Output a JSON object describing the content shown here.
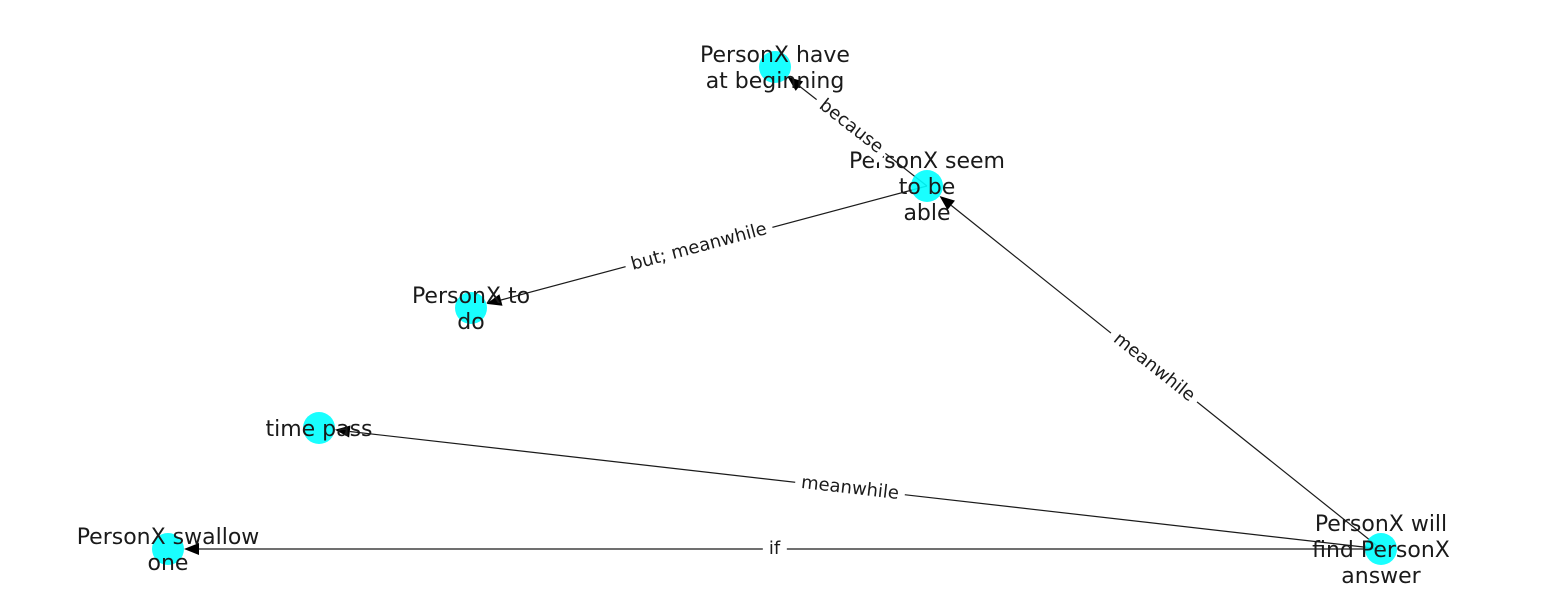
{
  "graph": {
    "nodes": [
      {
        "id": "n_have",
        "lines": [
          "PersonX have",
          "at beginning"
        ]
      },
      {
        "id": "n_seem",
        "lines": [
          "PersonX seem",
          "to be",
          "able"
        ]
      },
      {
        "id": "n_todo",
        "lines": [
          "PersonX to",
          "do"
        ]
      },
      {
        "id": "n_time",
        "lines": [
          "time pass"
        ]
      },
      {
        "id": "n_swallow",
        "lines": [
          "PersonX swallow",
          "one"
        ]
      },
      {
        "id": "n_find",
        "lines": [
          "PersonX will",
          "find PersonX",
          "answer"
        ]
      }
    ],
    "edges": [
      {
        "from": "n_seem",
        "to": "n_have",
        "label": "because"
      },
      {
        "from": "n_seem",
        "to": "n_todo",
        "label": "but;  meanwhile"
      },
      {
        "from": "n_find",
        "to": "n_seem",
        "label": "meanwhile"
      },
      {
        "from": "n_find",
        "to": "n_time",
        "label": "meanwhile"
      },
      {
        "from": "n_find",
        "to": "n_swallow",
        "label": "if"
      }
    ],
    "colors": {
      "node": "#00ffff",
      "edge": "#1a1a1a",
      "text": "#1a1a1a"
    }
  }
}
